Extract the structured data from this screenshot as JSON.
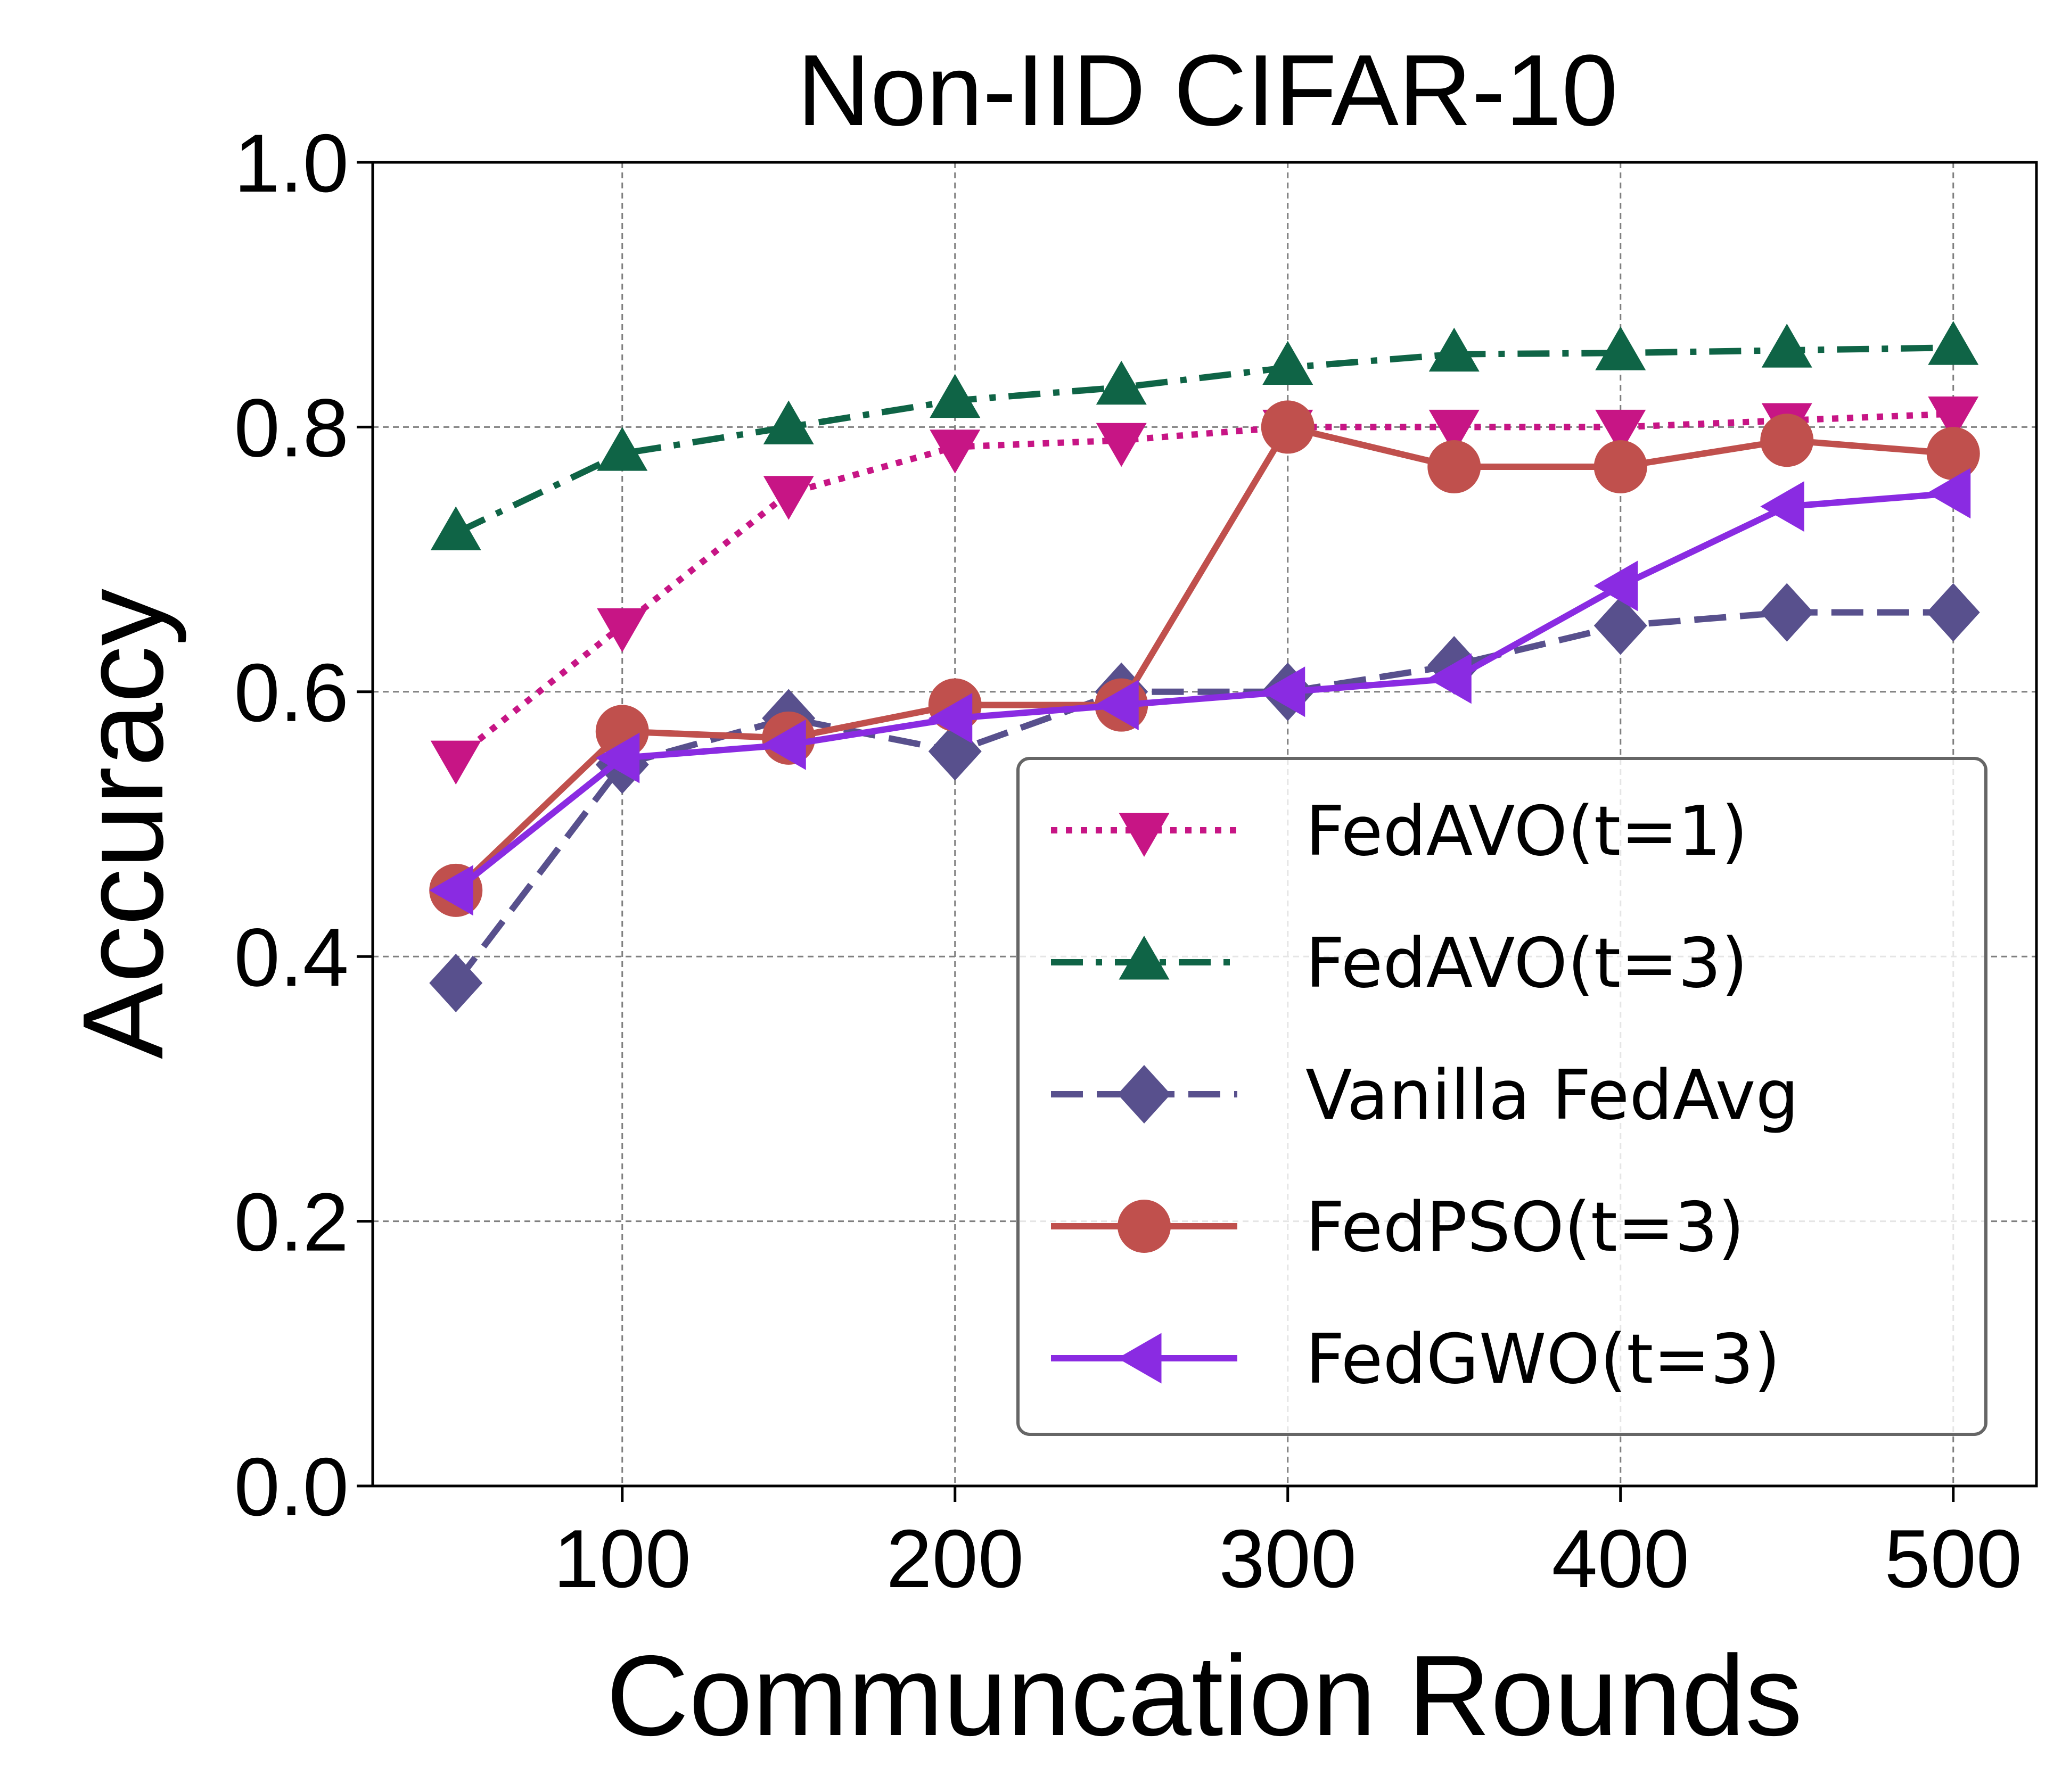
{
  "chart_data": {
    "type": "line",
    "title": "Non-IID CIFAR-10",
    "xlabel": "Communcation Rounds",
    "ylabel": "Accuracy",
    "x": [
      50,
      100,
      150,
      200,
      250,
      300,
      350,
      400,
      450,
      500
    ],
    "xlim": [
      25,
      525
    ],
    "ylim": [
      0.0,
      1.0
    ],
    "xticks": [
      100,
      200,
      300,
      400,
      500
    ],
    "xtick_labels": [
      "100",
      "200",
      "300",
      "400",
      "500"
    ],
    "yticks": [
      0.0,
      0.2,
      0.4,
      0.6,
      0.8,
      1.0
    ],
    "ytick_labels": [
      "0.0",
      "0.2",
      "0.4",
      "0.6",
      "0.8",
      "1.0"
    ],
    "grid": true,
    "legend_position": "lower-right",
    "series": [
      {
        "name": "FedAVO(t=1)",
        "color": "#c71585",
        "marker": "triangle-down",
        "linestyle": "dotted",
        "values": [
          0.55,
          0.65,
          0.75,
          0.785,
          0.79,
          0.8,
          0.8,
          0.8,
          0.805,
          0.81
        ]
      },
      {
        "name": "FedAVO(t=3)",
        "color": "#0f6446",
        "marker": "triangle-up",
        "linestyle": "dashdot",
        "values": [
          0.72,
          0.78,
          0.8,
          0.82,
          0.83,
          0.845,
          0.855,
          0.856,
          0.858,
          0.86
        ]
      },
      {
        "name": "Vanilla FedAvg",
        "color": "#58508d",
        "marker": "diamond",
        "linestyle": "dashed",
        "values": [
          0.38,
          0.545,
          0.58,
          0.555,
          0.6,
          0.6,
          0.62,
          0.65,
          0.66,
          0.66
        ]
      },
      {
        "name": "FedPSO(t=3)",
        "color": "#c0504d",
        "marker": "circle",
        "linestyle": "solid",
        "values": [
          0.45,
          0.57,
          0.565,
          0.59,
          0.59,
          0.8,
          0.77,
          0.77,
          0.79,
          0.78
        ]
      },
      {
        "name": "FedGWO(t=3)",
        "color": "#8a2be2",
        "marker": "triangle-left",
        "linestyle": "solid",
        "values": [
          0.45,
          0.55,
          0.56,
          0.58,
          0.59,
          0.6,
          0.61,
          0.68,
          0.74,
          0.75
        ]
      }
    ]
  }
}
